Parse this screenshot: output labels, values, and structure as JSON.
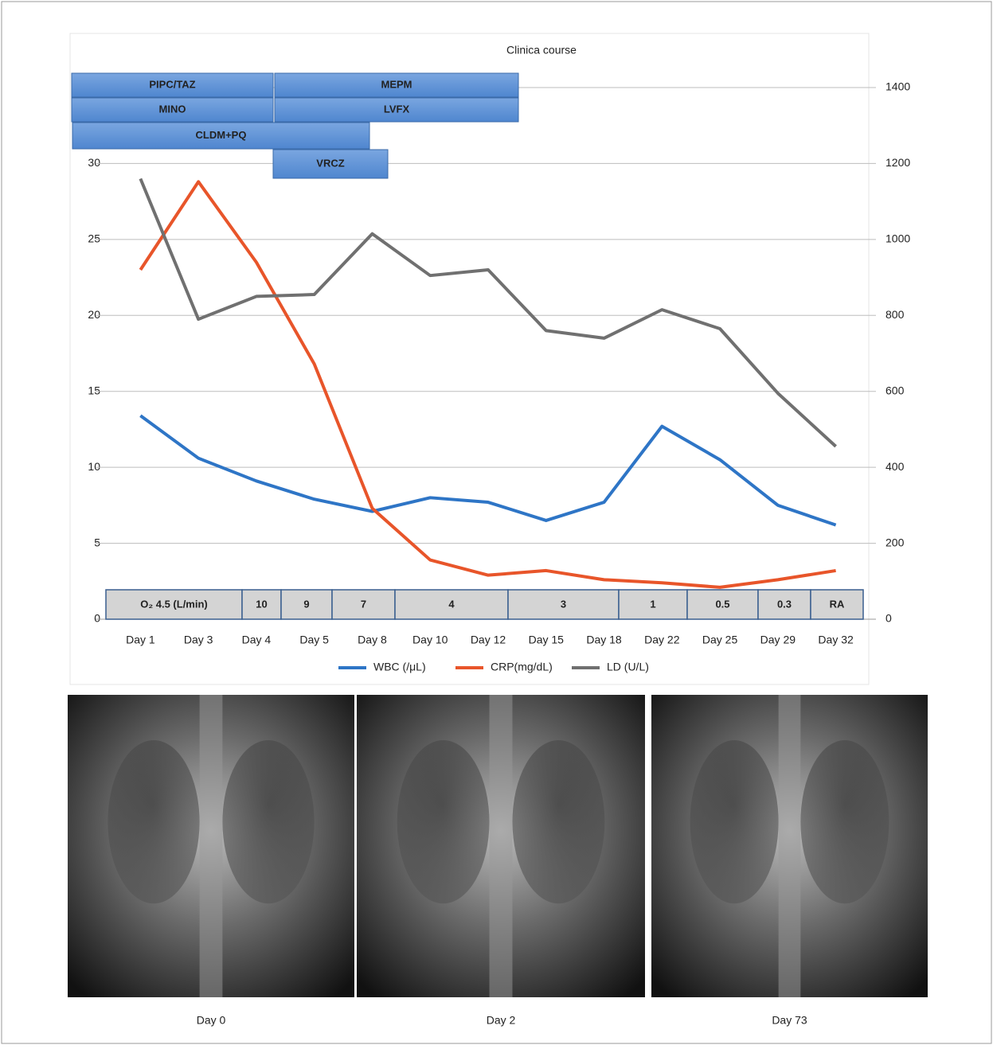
{
  "chart_data": {
    "type": "line",
    "title": "Clinica course",
    "categories": [
      "Day 1",
      "Day 3",
      "Day 4",
      "Day 5",
      "Day 8",
      "Day 10",
      "Day 12",
      "Day 15",
      "Day 18",
      "Day 22",
      "Day 25",
      "Day 29",
      "Day 32"
    ],
    "series": [
      {
        "name": "WBC (/μL)",
        "color": "#2e75c6",
        "values": [
          13.4,
          10.6,
          9.1,
          7.9,
          7.1,
          8.0,
          7.7,
          6.5,
          7.7,
          12.7,
          10.5,
          7.5,
          6.2
        ]
      },
      {
        "name": "CRP(mg/dL)",
        "color": "#e8552a",
        "values": [
          23.0,
          28.8,
          23.5,
          16.8,
          7.3,
          3.9,
          2.9,
          3.2,
          2.6,
          2.4,
          2.1,
          2.6,
          3.2
        ]
      },
      {
        "name": "LD (U/L)",
        "color": "#707070",
        "axis": "y2",
        "values": [
          1160,
          790,
          850,
          855,
          1015,
          905,
          920,
          760,
          740,
          815,
          765,
          595,
          455
        ]
      }
    ],
    "ylim": [
      0,
      35
    ],
    "yticks": [
      0,
      5,
      10,
      15,
      20,
      25,
      30
    ],
    "y2lim": [
      0,
      1400
    ],
    "y2ticks": [
      0,
      200,
      400,
      600,
      800,
      1000,
      1200,
      1400
    ],
    "grid": true,
    "legend": "bottom"
  },
  "treatments": [
    "PIPC/TAZ",
    "MEPM",
    "MINO",
    "LVFX",
    "CLDM+PQ",
    "VRCZ"
  ],
  "oxygen": [
    "O₂ 4.5 (L/min)",
    "10",
    "9",
    "7",
    "4",
    "3",
    "1",
    "0.5",
    "0.3",
    "RA"
  ],
  "images": [
    {
      "caption": "Day 0"
    },
    {
      "caption": "Day 2"
    },
    {
      "caption": "Day 73"
    }
  ]
}
